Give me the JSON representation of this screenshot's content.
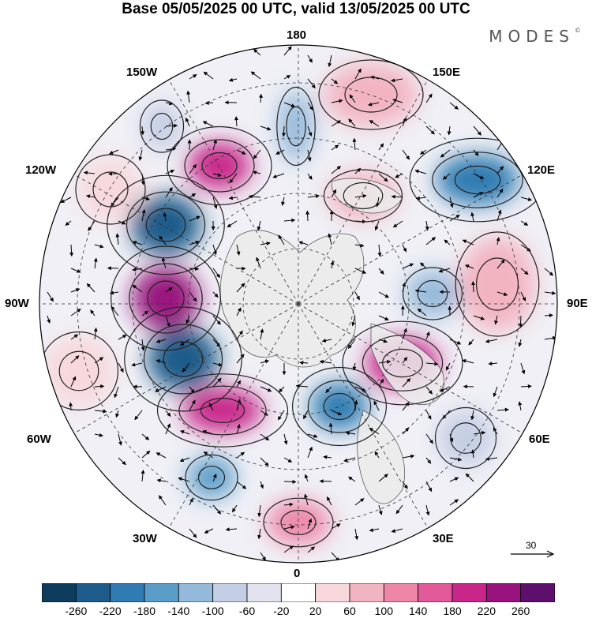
{
  "title": "Base 05/05/2025 00 UTC, valid 13/05/2025 00 UTC",
  "brand": {
    "name": "MODES",
    "mark": "©"
  },
  "longitude_labels": {
    "top": "180",
    "bottom": "0",
    "left": "90W",
    "right": "90E",
    "upper_left_1": "150W",
    "upper_left_2": "120W",
    "lower_left_1": "60W",
    "lower_left_2": "30W",
    "upper_right_1": "150E",
    "upper_right_2": "120E",
    "lower_right_1": "60E",
    "lower_right_2": "30E"
  },
  "vector_scale": {
    "label": "30"
  },
  "colorbar": {
    "ticks": [
      "-260",
      "-220",
      "-180",
      "-140",
      "-100",
      "-60",
      "-20",
      "20",
      "60",
      "100",
      "140",
      "180",
      "220",
      "260"
    ],
    "colors": [
      "#0d3c5c",
      "#1d5c8a",
      "#2f7bb2",
      "#5a9dc9",
      "#94b9da",
      "#c4cee4",
      "#e3e3f0",
      "#ffffff",
      "#f8d8dc",
      "#f3b4c1",
      "#ee86a8",
      "#e25a9a",
      "#c9268a",
      "#98137e",
      "#5d0f6e"
    ]
  },
  "anomaly_centers": [
    {
      "id": "a1",
      "value": -220,
      "color": "#1d5c8a"
    },
    {
      "id": "a2",
      "value": -220,
      "color": "#1d5c8a"
    },
    {
      "id": "a3",
      "value": -200,
      "color": "#2f7bb2"
    },
    {
      "id": "a4",
      "value": 220,
      "color": "#98137e"
    },
    {
      "id": "a5",
      "value": 200,
      "color": "#c9268a"
    },
    {
      "id": "a6",
      "value": 180,
      "color": "#c9268a"
    },
    {
      "id": "a7",
      "value": 180,
      "color": "#c9268a"
    },
    {
      "id": "a8",
      "value": -160,
      "color": "#2f7bb2"
    },
    {
      "id": "a9",
      "value": -120,
      "color": "#5a9dc9"
    },
    {
      "id": "a10",
      "value": 120,
      "color": "#ee86a8"
    },
    {
      "id": "a11",
      "value": -100,
      "color": "#94b9da"
    },
    {
      "id": "a12",
      "value": -100,
      "color": "#94b9da"
    },
    {
      "id": "a13",
      "value": 100,
      "color": "#f3b4c1"
    },
    {
      "id": "a14",
      "value": 100,
      "color": "#f3b4c1"
    },
    {
      "id": "a15",
      "value": 80,
      "color": "#f3b4c1"
    },
    {
      "id": "a16",
      "value": -80,
      "color": "#c4cee4"
    },
    {
      "id": "a17",
      "value": 60,
      "color": "#f8d8dc"
    },
    {
      "id": "a18",
      "value": -60,
      "color": "#c4cee4"
    },
    {
      "id": "a19",
      "value": 60,
      "color": "#f8d8dc"
    }
  ]
}
